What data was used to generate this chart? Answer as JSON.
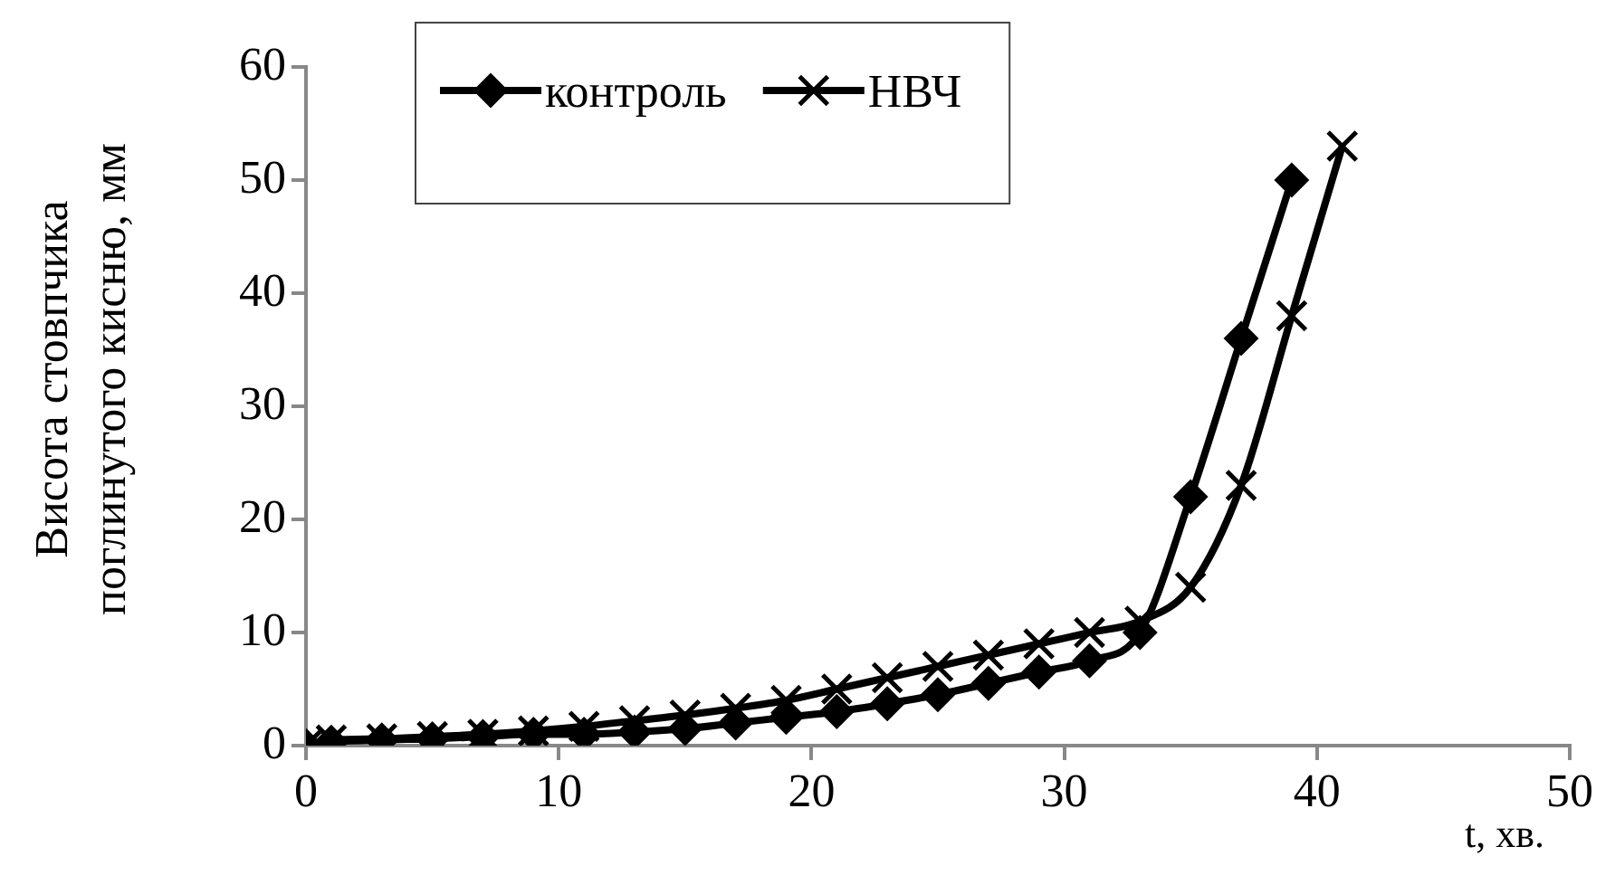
{
  "chart_data": {
    "type": "line",
    "xlabel": "t, хв.",
    "ylabel": "Висота стовпчика поглинутого кисню, мм",
    "xlim": [
      0,
      50
    ],
    "xticks": [
      0,
      10,
      20,
      30,
      40,
      50
    ],
    "ylim": [
      0,
      60
    ],
    "yticks": [
      0,
      10,
      20,
      30,
      40,
      50,
      60
    ],
    "grid": false,
    "legend": "top",
    "series": [
      {
        "name": "контроль",
        "color": "#000000",
        "marker": "diamond",
        "x": [
          0,
          1,
          3,
          5,
          7,
          9,
          11,
          13,
          15,
          17,
          19,
          21,
          23,
          25,
          27,
          29,
          31,
          33,
          35,
          37,
          39
        ],
        "values": [
          0,
          0.3,
          0.5,
          0.6,
          0.8,
          1,
          1,
          1.2,
          1.5,
          2,
          2.5,
          3,
          3.7,
          4.5,
          5.5,
          6.5,
          7.5,
          10,
          22,
          36,
          50
        ]
      },
      {
        "name": "НВЧ",
        "color": "#000000",
        "marker": "cross",
        "x": [
          0,
          1,
          3,
          5,
          7,
          9,
          11,
          13,
          15,
          17,
          19,
          21,
          23,
          25,
          27,
          29,
          31,
          33,
          35,
          37,
          39,
          41
        ],
        "values": [
          0,
          0.5,
          0.6,
          0.8,
          1,
          1.3,
          1.7,
          2.2,
          2.7,
          3.3,
          4,
          5,
          6,
          7,
          8,
          9,
          10,
          11,
          14,
          23,
          38,
          53
        ]
      }
    ]
  }
}
